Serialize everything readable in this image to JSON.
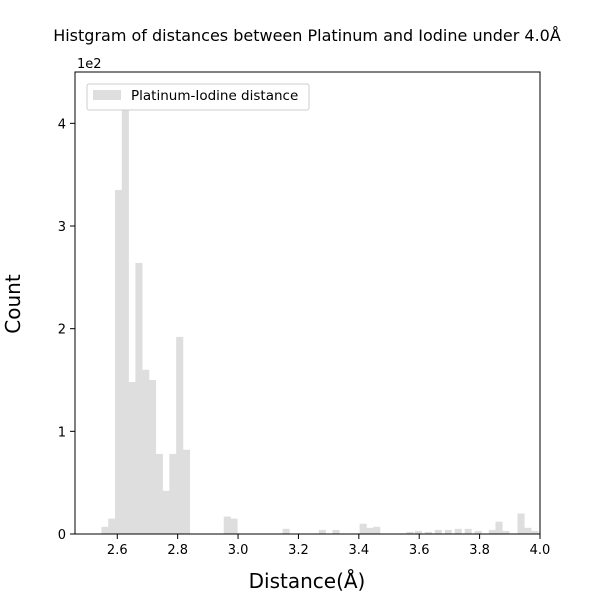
{
  "chart_data": {
    "type": "bar",
    "title": "Histgram of distances between Platinum and Iodine under 4.0Å",
    "xlabel": "Distance(Å)",
    "ylabel": "Count",
    "y_multiplier": "1e2",
    "xlim": [
      2.46,
      4.0
    ],
    "ylim": [
      0,
      450
    ],
    "grid": false,
    "legend_position": "top-left",
    "bin_width": 0.0225,
    "x_ticks": [
      "2.6",
      "2.8",
      "3.0",
      "3.2",
      "3.4",
      "3.6",
      "3.8",
      "4.0"
    ],
    "y_ticks": [
      "0",
      "1",
      "2",
      "3",
      "4"
    ],
    "x_tick_values": [
      2.6,
      2.8,
      3.0,
      3.2,
      3.4,
      3.6,
      3.8,
      4.0
    ],
    "y_tick_values": [
      0,
      100,
      200,
      300,
      400
    ],
    "series": [
      {
        "name": "Platinum-Iodine distance",
        "color": "#dedede",
        "bin_left": [
          2.5475,
          2.57,
          2.5925,
          2.615,
          2.6375,
          2.66,
          2.6825,
          2.705,
          2.7275,
          2.75,
          2.7725,
          2.795,
          2.8175,
          2.9525,
          2.975,
          3.1475,
          3.2675,
          3.3125,
          3.4025,
          3.4245,
          3.4475,
          3.5575,
          3.5855,
          3.6185,
          3.6515,
          3.6845,
          3.7175,
          3.7505,
          3.7835,
          3.8305,
          3.8525,
          3.8755,
          3.9255,
          3.9485,
          3.9715
        ],
        "values": [
          7,
          15,
          335,
          425,
          148,
          264,
          160,
          150,
          78,
          42,
          78,
          192,
          82,
          17,
          15,
          5,
          4,
          4,
          10,
          6,
          7,
          2,
          3,
          2,
          4,
          4,
          5,
          5,
          3,
          4,
          12,
          3,
          20,
          6,
          3
        ]
      }
    ]
  }
}
